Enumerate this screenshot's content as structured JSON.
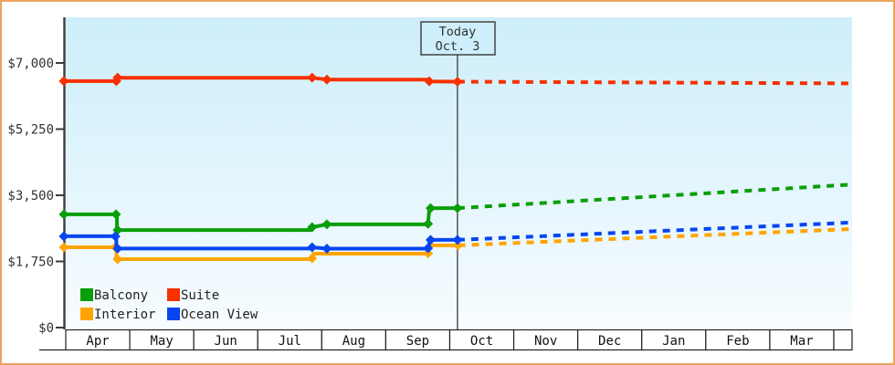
{
  "chart_data": {
    "type": "line",
    "y_axis": {
      "ticks": [
        {
          "label": "$0",
          "value": 0
        },
        {
          "label": "$1,750",
          "value": 1750
        },
        {
          "label": "$3,500",
          "value": 3500
        },
        {
          "label": "$5,250",
          "value": 5250
        },
        {
          "label": "$7,000",
          "value": 7000
        }
      ]
    },
    "x_axis": {
      "months": [
        "Apr",
        "May",
        "Jun",
        "Jul",
        "Aug",
        "Sep",
        "Oct",
        "Nov",
        "Dec",
        "Jan",
        "Feb",
        "Mar"
      ]
    },
    "today_marker": {
      "line1": "Today",
      "line2": "Oct. 3",
      "month_position": 6.12
    },
    "legend": [
      {
        "label": "Balcony",
        "color": "#0a9e0a"
      },
      {
        "label": "Suite",
        "color": "#f93000"
      },
      {
        "label": "Interior",
        "color": "#ffa400"
      },
      {
        "label": "Ocean View",
        "color": "#0845f0"
      }
    ],
    "series": [
      {
        "name": "Suite",
        "color": "#f93000",
        "solid": [
          [
            -0.03,
            6520
          ],
          [
            0.8,
            6520
          ],
          [
            0.8,
            6610
          ],
          [
            3.85,
            6610
          ],
          [
            4.08,
            6560
          ],
          [
            5.66,
            6560
          ],
          [
            5.68,
            6510
          ],
          [
            6.12,
            6505
          ]
        ],
        "markers": [
          [
            -0.03,
            6520
          ],
          [
            0.79,
            6520
          ],
          [
            0.81,
            6610
          ],
          [
            3.85,
            6610
          ],
          [
            4.08,
            6560
          ],
          [
            5.68,
            6515
          ],
          [
            6.12,
            6505
          ]
        ],
        "dashed": [
          [
            6.12,
            6505
          ],
          [
            12.24,
            6460
          ]
        ]
      },
      {
        "name": "Balcony",
        "color": "#0a9e0a",
        "solid": [
          [
            -0.03,
            2995
          ],
          [
            0.8,
            2995
          ],
          [
            0.8,
            2580
          ],
          [
            3.83,
            2580
          ],
          [
            3.85,
            2655
          ],
          [
            4.08,
            2730
          ],
          [
            5.66,
            2730
          ],
          [
            5.68,
            3160
          ],
          [
            6.12,
            3160
          ]
        ],
        "markers": [
          [
            -0.03,
            2995
          ],
          [
            0.785,
            2995
          ],
          [
            0.81,
            2580
          ],
          [
            3.85,
            2655
          ],
          [
            4.08,
            2730
          ],
          [
            5.66,
            2745
          ],
          [
            5.7,
            3160
          ],
          [
            6.12,
            3160
          ]
        ],
        "dashed": [
          [
            6.12,
            3160
          ],
          [
            12.24,
            3780
          ]
        ]
      },
      {
        "name": "Interior",
        "color": "#ffa400",
        "solid": [
          [
            -0.03,
            2125
          ],
          [
            0.79,
            2125
          ],
          [
            0.79,
            1810
          ],
          [
            3.83,
            1810
          ],
          [
            3.87,
            1955
          ],
          [
            5.66,
            1955
          ],
          [
            5.69,
            2175
          ],
          [
            6.13,
            2175
          ]
        ],
        "markers": [
          [
            -0.03,
            2125
          ],
          [
            0.775,
            2125
          ],
          [
            0.81,
            1810
          ],
          [
            3.85,
            1835
          ],
          [
            5.66,
            1965
          ],
          [
            6.13,
            2175
          ]
        ],
        "dashed": [
          [
            6.13,
            2175
          ],
          [
            12.24,
            2605
          ]
        ]
      },
      {
        "name": "Ocean View",
        "color": "#0845f0",
        "solid": [
          [
            -0.03,
            2415
          ],
          [
            0.79,
            2415
          ],
          [
            0.79,
            2090
          ],
          [
            3.83,
            2090
          ],
          [
            3.85,
            2125
          ],
          [
            4.08,
            2088
          ],
          [
            5.66,
            2088
          ],
          [
            5.69,
            2320
          ],
          [
            6.12,
            2320
          ]
        ],
        "markers": [
          [
            -0.03,
            2415
          ],
          [
            0.775,
            2415
          ],
          [
            0.81,
            2090
          ],
          [
            3.85,
            2125
          ],
          [
            4.08,
            2088
          ],
          [
            5.66,
            2100
          ],
          [
            5.7,
            2320
          ],
          [
            6.12,
            2320
          ]
        ],
        "dashed": [
          [
            6.12,
            2320
          ],
          [
            12.24,
            2775
          ]
        ]
      }
    ],
    "colors": {
      "frame": "#eaa55e",
      "plot_bg_top": "#cdeefa",
      "plot_bg_bottom": "#f7fcff",
      "axis": "#3c3c3c",
      "text": "#333333",
      "band_border": "#222222",
      "today_line": "#45494d"
    }
  }
}
